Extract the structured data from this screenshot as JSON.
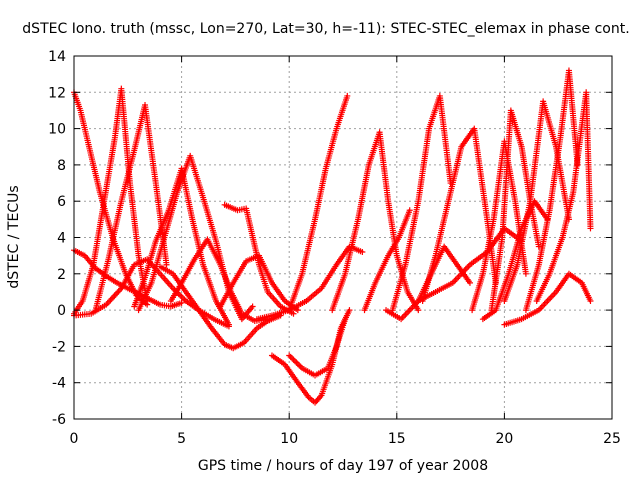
{
  "chart_data": {
    "type": "scatter",
    "title": "dSTEC Iono. truth (mssc, Lon=270, Lat=30, h=-11): STEC-STEC_elemax in phase cont.",
    "xlabel": "GPS time / hours of day 197 of year 2008",
    "ylabel": "dSTEC  / TECUs",
    "xlim": [
      0,
      25
    ],
    "ylim": [
      -6,
      14
    ],
    "x_ticks": [
      "0",
      "5",
      "10",
      "15",
      "20",
      "25"
    ],
    "y_ticks": [
      "-6",
      "-4",
      "-2",
      "0",
      "2",
      "4",
      "6",
      "8",
      "10",
      "12",
      "14"
    ],
    "grid": true,
    "marker": "+",
    "series_color": "#ff0000",
    "series": [
      {
        "x": [
          0.0,
          0.3,
          0.7,
          1.2,
          1.8,
          2.4,
          2.9,
          3.4
        ],
        "y": [
          12.0,
          11.0,
          9.0,
          6.5,
          4.0,
          2.0,
          0.8,
          0.3
        ]
      },
      {
        "x": [
          0.0,
          0.4,
          0.9,
          1.4,
          1.9,
          2.2,
          2.6,
          3.0,
          3.4
        ],
        "y": [
          -0.2,
          0.5,
          2.5,
          6.0,
          9.5,
          12.2,
          7.0,
          3.0,
          0.5
        ]
      },
      {
        "x": [
          0.0,
          0.5,
          1.0,
          1.6,
          2.0,
          2.5,
          3.0,
          3.5,
          4.0,
          4.5,
          5.0
        ],
        "y": [
          3.3,
          3.0,
          2.3,
          1.8,
          1.5,
          1.2,
          0.9,
          0.6,
          0.3,
          0.2,
          0.4
        ]
      },
      {
        "x": [
          1.0,
          1.6,
          2.2,
          2.8,
          3.3,
          3.8,
          4.3
        ],
        "y": [
          0.0,
          2.8,
          6.0,
          8.8,
          11.3,
          7.0,
          2.5
        ]
      },
      {
        "x": [
          0.0,
          0.8,
          1.5,
          2.2,
          2.8,
          3.4,
          4.0,
          4.6,
          5.2,
          5.8,
          6.5,
          7.2
        ],
        "y": [
          -0.3,
          -0.2,
          0.3,
          1.2,
          2.5,
          2.8,
          2.0,
          1.2,
          0.5,
          0.0,
          -0.5,
          -0.9
        ]
      },
      {
        "x": [
          2.8,
          3.3,
          3.8,
          4.4,
          5.0,
          5.5,
          6.0,
          6.6,
          7.2
        ],
        "y": [
          0.2,
          1.8,
          3.8,
          5.5,
          7.8,
          5.0,
          2.5,
          0.5,
          -0.8
        ]
      },
      {
        "x": [
          3.0,
          3.6,
          4.2,
          4.8,
          5.4,
          6.0,
          6.6,
          7.2,
          7.8,
          8.3
        ],
        "y": [
          0.0,
          1.5,
          4.0,
          6.5,
          8.5,
          6.2,
          3.8,
          1.0,
          -0.5,
          0.2
        ]
      },
      {
        "x": [
          4.0,
          4.6,
          5.2,
          5.8,
          6.4,
          7.0,
          7.4,
          7.9,
          8.5,
          9.0,
          9.6
        ],
        "y": [
          2.4,
          2.0,
          1.0,
          0.0,
          -1.0,
          -1.9,
          -2.1,
          -1.8,
          -1.0,
          -0.6,
          -0.3
        ]
      },
      {
        "x": [
          4.5,
          5.0,
          5.6,
          6.2,
          6.8,
          7.3,
          7.8,
          8.4,
          9.0
        ],
        "y": [
          0.5,
          1.5,
          2.8,
          3.9,
          2.5,
          1.0,
          -0.2,
          -0.6,
          -0.5
        ]
      },
      {
        "x": [
          7.0,
          7.6,
          8.0,
          8.6,
          9.0,
          9.6,
          10.2
        ],
        "y": [
          5.8,
          5.5,
          5.6,
          2.5,
          1.0,
          0.2,
          -0.2
        ]
      },
      {
        "x": [
          6.8,
          7.4,
          8.0,
          8.6,
          9.2,
          9.8,
          10.4
        ],
        "y": [
          0.2,
          1.5,
          2.7,
          3.0,
          1.5,
          0.5,
          0.0
        ]
      },
      {
        "x": [
          9.2,
          9.8,
          10.4,
          10.9,
          11.2,
          11.5,
          12.0,
          12.4,
          12.8
        ],
        "y": [
          -2.5,
          -3.0,
          -4.0,
          -4.8,
          -5.1,
          -4.7,
          -3.0,
          -1.0,
          0.0
        ]
      },
      {
        "x": [
          10.0,
          10.6,
          11.2,
          11.8,
          12.2,
          12.6
        ],
        "y": [
          -2.5,
          -3.2,
          -3.6,
          -3.2,
          -2.0,
          -0.5
        ]
      },
      {
        "x": [
          10.0,
          10.6,
          11.2,
          11.7,
          12.2,
          12.7
        ],
        "y": [
          0.0,
          2.0,
          5.0,
          7.8,
          10.0,
          11.8
        ]
      },
      {
        "x": [
          8.5,
          9.2,
          10.0,
          10.8,
          11.5,
          12.2,
          12.8,
          13.4
        ],
        "y": [
          -0.5,
          -0.3,
          0.0,
          0.5,
          1.2,
          2.5,
          3.5,
          3.2
        ]
      },
      {
        "x": [
          12.0,
          12.6,
          13.2,
          13.7,
          14.2,
          14.6,
          15.0,
          15.5,
          16.0
        ],
        "y": [
          0.0,
          2.0,
          5.0,
          8.0,
          9.8,
          6.0,
          3.0,
          1.0,
          0.0
        ]
      },
      {
        "x": [
          13.5,
          14.0,
          14.6,
          15.1,
          15.6
        ],
        "y": [
          0.0,
          1.5,
          3.0,
          4.0,
          5.5
        ]
      },
      {
        "x": [
          14.5,
          15.2,
          16.0,
          16.6,
          17.2,
          17.8,
          18.4
        ],
        "y": [
          0.0,
          -0.5,
          0.5,
          2.0,
          3.5,
          2.5,
          1.5
        ]
      },
      {
        "x": [
          14.8,
          15.4,
          16.0,
          16.5,
          17.0,
          17.5
        ],
        "y": [
          0.0,
          2.5,
          6.0,
          10.0,
          11.8,
          7.0
        ]
      },
      {
        "x": [
          16.2,
          16.8,
          17.4,
          18.0,
          18.6,
          19.2,
          19.6
        ],
        "y": [
          0.5,
          3.0,
          6.0,
          9.0,
          10.0,
          5.0,
          1.5
        ]
      },
      {
        "x": [
          16.0,
          16.8,
          17.6,
          18.4,
          19.2,
          20.0,
          20.8
        ],
        "y": [
          0.5,
          1.0,
          1.5,
          2.5,
          3.2,
          4.5,
          3.8
        ]
      },
      {
        "x": [
          18.5,
          19.0,
          19.5,
          20.0,
          20.5,
          21.0
        ],
        "y": [
          0.0,
          2.0,
          5.0,
          9.3,
          6.0,
          2.0
        ]
      },
      {
        "x": [
          19.0,
          19.6,
          20.2,
          20.8,
          21.4,
          22.0
        ],
        "y": [
          -0.5,
          0.0,
          2.0,
          4.5,
          6.0,
          5.0
        ]
      },
      {
        "x": [
          19.4,
          19.9,
          20.3,
          20.8,
          21.2,
          21.6
        ],
        "y": [
          0.0,
          4.0,
          11.0,
          9.0,
          6.0,
          3.5
        ]
      },
      {
        "x": [
          20.0,
          20.6,
          21.2,
          21.8,
          22.4,
          23.0
        ],
        "y": [
          0.5,
          2.5,
          6.0,
          11.5,
          9.0,
          5.0
        ]
      },
      {
        "x": [
          21.0,
          21.6,
          22.1,
          22.6,
          23.0,
          23.4
        ],
        "y": [
          0.0,
          2.5,
          5.5,
          9.5,
          13.2,
          8.0
        ]
      },
      {
        "x": [
          21.5,
          22.1,
          22.7,
          23.2,
          23.8,
          24.0
        ],
        "y": [
          0.5,
          2.0,
          4.0,
          6.5,
          12.0,
          4.5
        ]
      },
      {
        "x": [
          20.0,
          20.8,
          21.6,
          22.4,
          23.0,
          23.6,
          24.0
        ],
        "y": [
          -0.8,
          -0.5,
          0.0,
          1.0,
          2.0,
          1.5,
          0.5
        ]
      }
    ]
  }
}
